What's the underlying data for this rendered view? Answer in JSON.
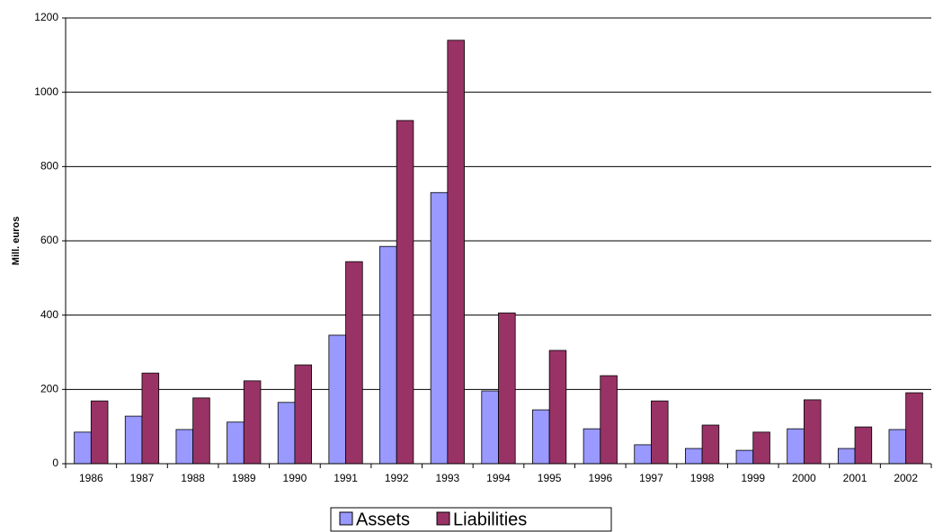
{
  "chart_data": {
    "type": "bar",
    "y_label": "Mill. euros",
    "categories": [
      "1986",
      "1987",
      "1988",
      "1989",
      "1990",
      "1991",
      "1992",
      "1993",
      "1994",
      "1995",
      "1996",
      "1997",
      "1998",
      "1999",
      "2000",
      "2001",
      "2002"
    ],
    "series": [
      {
        "name": "Assets",
        "color": "#9999ff",
        "values": [
          85,
          128,
          92,
          112,
          165,
          346,
          585,
          730,
          196,
          145,
          94,
          51,
          41,
          36,
          94,
          41,
          92
        ]
      },
      {
        "name": "Liabilities",
        "color": "#993366",
        "values": [
          169,
          244,
          177,
          223,
          266,
          544,
          924,
          1140,
          406,
          305,
          237,
          169,
          104,
          85,
          172,
          99,
          191
        ]
      }
    ],
    "ylim": [
      0,
      1200
    ],
    "yticks": [
      0,
      200,
      400,
      600,
      800,
      1000,
      1200
    ],
    "grid": true
  }
}
